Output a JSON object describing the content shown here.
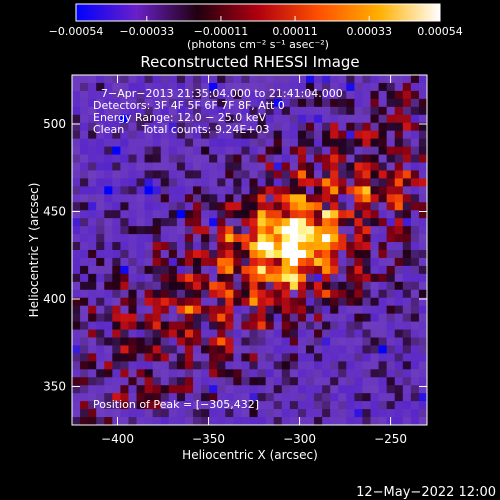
{
  "chart_data": {
    "type": "heatmap",
    "title": "Reconstructed RHESSI Image",
    "xlabel": "Heliocentric X (arcsec)",
    "ylabel": "Heliocentric Y (arcsec)",
    "xlim": [
      -425,
      -230
    ],
    "ylim": [
      328,
      528
    ],
    "x_ticks": [
      -400,
      -350,
      -300,
      -250
    ],
    "y_ticks": [
      350,
      400,
      450,
      500
    ],
    "x_tick_labels": [
      "−400",
      "−350",
      "−300",
      "−250"
    ],
    "y_tick_labels": [
      "350",
      "400",
      "450",
      "500"
    ],
    "colorbar": {
      "min": -0.00054,
      "max": 0.00054,
      "ticks": [
        -0.00054,
        -0.00033,
        -0.00011,
        0.00011,
        0.00033,
        0.00054
      ],
      "tick_labels": [
        "−0.00054",
        "−0.00033",
        "−0.00011",
        "0.00011",
        "0.00033",
        "0.00054"
      ],
      "unit_label": "(photons cm⁻² s⁻¹ asec⁻²)",
      "colors": [
        "#0000ff",
        "#6a20c8",
        "#200010",
        "#b00010",
        "#ff5000",
        "#ffb000",
        "#ffffff"
      ]
    },
    "annotations": [
      "7−Apr−2013 21:35:04.000 to 21:41:04.000",
      "Detectors: 3F 4F 5F 6F 7F 8F, Att 0",
      "Energy Range: 12.0 − 25.0 keV",
      "Clean     Total counts: 9.24E+03"
    ],
    "peak_label": "Position of Peak = [−305,432]",
    "peak": {
      "x": -305,
      "y": 432
    },
    "colors": {
      "background": "#000000",
      "text": "#ffffff"
    }
  },
  "footer": {
    "timestamp": "12−May−2022 12:00"
  }
}
